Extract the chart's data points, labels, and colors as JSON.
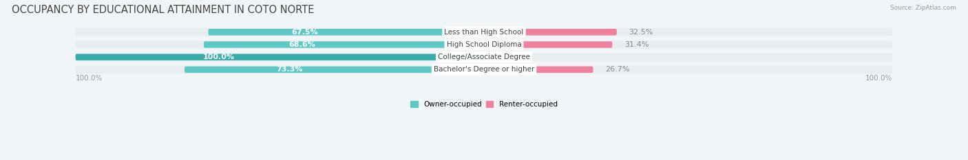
{
  "title": "OCCUPANCY BY EDUCATIONAL ATTAINMENT IN COTO NORTE",
  "source": "Source: ZipAtlas.com",
  "categories": [
    "Less than High School",
    "High School Diploma",
    "College/Associate Degree",
    "Bachelor's Degree or higher"
  ],
  "owner_pct": [
    67.5,
    68.6,
    100.0,
    73.3
  ],
  "renter_pct": [
    32.5,
    31.4,
    0.0,
    26.7
  ],
  "owner_color": "#5EC8C4",
  "owner_color_dark": "#3AACAB",
  "renter_color": "#F080A0",
  "renter_color_light": "#F8C0D0",
  "bg_color": "#f2f5f7",
  "row_bg_color": "#e8edf0",
  "title_fontsize": 10.5,
  "label_fontsize": 8.0,
  "axis_label_fontsize": 7.5,
  "bar_height": 0.52,
  "total_width": 100.0,
  "left_label": "100.0%",
  "right_label": "100.0%"
}
